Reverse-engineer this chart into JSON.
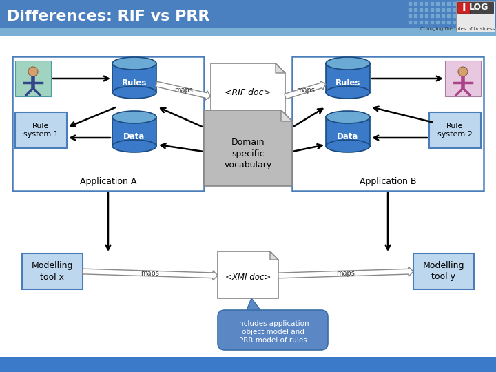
{
  "title": "Differences: RIF vs PRR",
  "title_color": "#FFFFFF",
  "title_bg_dark": "#3A6EA8",
  "title_bg_light": "#6CA0DC",
  "slide_bg": "#FFFFFF",
  "content_bg": "#FFFFFF",
  "bottom_bar": "#3A7AC8",
  "app_box_color": "#FFFFFF",
  "app_box_border": "#4A7EBB",
  "rule_sys_box_color": "#BDD7EE",
  "rule_sys_box_border": "#4A7EBB",
  "model_tool_box_color": "#BDD7EE",
  "model_tool_box_border": "#4A7EBB",
  "doc_box_color": "#FFFFFF",
  "doc_box_border": "#888888",
  "domain_box_color": "#BBBBBB",
  "domain_box_border": "#888888",
  "callout_box_color": "#5B87C5",
  "callout_box_border": "#3A6EA8",
  "db_top": "#6AAAD4",
  "db_body": "#3A7AC8",
  "db_border": "#1A4A80",
  "arrow_color": "#000000",
  "maps_arrow_fill": "#FFFFFF",
  "maps_arrow_border": "#888888",
  "text_dark": "#000000",
  "text_white": "#FFFFFF",
  "header_stripe_color": "#7BAFD4",
  "app_a_label": "Application A",
  "app_b_label": "Application B",
  "rule_sys1_label": "Rule\nsystem 1",
  "rule_sys2_label": "Rule\nsystem 2",
  "rules_label": "Rules",
  "data_label": "Data",
  "rif_doc_label": "<RIF doc>",
  "xmi_doc_label": "<XMI doc>",
  "domain_label": "Domain\nspecific\nvocabulary",
  "model_tool_x_label": "Modelling\ntool x",
  "model_tool_y_label": "Modelling\ntool y",
  "maps_label": "maps",
  "callout_label": "Includes application\nobject model and\nPRR model of rules"
}
